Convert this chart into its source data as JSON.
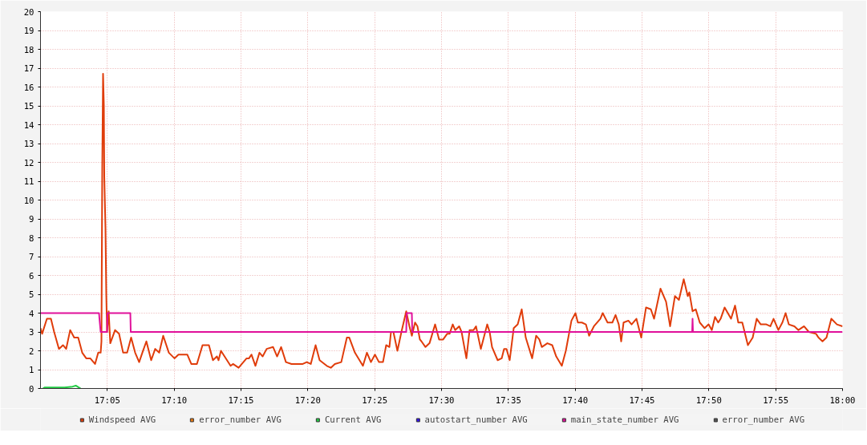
{
  "chart_data": {
    "type": "line",
    "xlim": [
      17.0,
      18.0
    ],
    "xticks": [
      {
        "value": 17.08333,
        "label": "17:05"
      },
      {
        "value": 17.16667,
        "label": "17:10"
      },
      {
        "value": 17.25,
        "label": "17:15"
      },
      {
        "value": 17.33333,
        "label": "17:20"
      },
      {
        "value": 17.41667,
        "label": "17:25"
      },
      {
        "value": 17.5,
        "label": "17:30"
      },
      {
        "value": 17.58333,
        "label": "17:35"
      },
      {
        "value": 17.66667,
        "label": "17:40"
      },
      {
        "value": 17.75,
        "label": "17:45"
      },
      {
        "value": 17.83333,
        "label": "17:50"
      },
      {
        "value": 17.91667,
        "label": "17:55"
      },
      {
        "value": 18.0,
        "label": "18:00"
      }
    ],
    "ylim": [
      0,
      20
    ],
    "yticks": [
      0,
      1,
      2,
      3,
      4,
      5,
      6,
      7,
      8,
      9,
      10,
      11,
      12,
      13,
      14,
      15,
      16,
      17,
      18,
      19,
      20
    ],
    "grid": true,
    "legend": "bottom",
    "series": [
      {
        "name": "Windspeed AVG",
        "color": "#e03c0a",
        "x": [
          17.0,
          17.002,
          17.008,
          17.013,
          17.017,
          17.023,
          17.028,
          17.032,
          17.037,
          17.042,
          17.047,
          17.052,
          17.057,
          17.062,
          17.068,
          17.072,
          17.075,
          17.076,
          17.077,
          17.078,
          17.079,
          17.0795,
          17.081,
          17.082,
          17.083,
          17.085,
          17.087,
          17.093,
          17.098,
          17.103,
          17.108,
          17.113,
          17.118,
          17.123,
          17.127,
          17.132,
          17.138,
          17.143,
          17.148,
          17.153,
          17.16,
          17.167,
          17.172,
          17.183,
          17.188,
          17.195,
          17.202,
          17.21,
          17.215,
          17.22,
          17.222,
          17.225,
          17.237,
          17.24,
          17.247,
          17.257,
          17.26,
          17.263,
          17.268,
          17.273,
          17.277,
          17.282,
          17.29,
          17.295,
          17.3,
          17.306,
          17.313,
          17.327,
          17.332,
          17.337,
          17.343,
          17.348,
          17.357,
          17.362,
          17.367,
          17.375,
          17.382,
          17.385,
          17.392,
          17.402,
          17.407,
          17.412,
          17.417,
          17.422,
          17.427,
          17.431,
          17.435,
          17.437,
          17.44,
          17.445,
          17.45,
          17.456,
          17.46,
          17.463,
          17.467,
          17.47,
          17.473,
          17.475,
          17.48,
          17.485,
          17.492,
          17.497,
          17.502,
          17.507,
          17.51,
          17.514,
          17.517,
          17.522,
          17.525,
          17.531,
          17.535,
          17.54,
          17.543,
          17.549,
          17.557,
          17.56,
          17.563,
          17.57,
          17.575,
          17.578,
          17.581,
          17.585,
          17.59,
          17.595,
          17.6,
          17.605,
          17.613,
          17.618,
          17.622,
          17.625,
          17.632,
          17.638,
          17.643,
          17.65,
          17.655,
          17.662,
          17.667,
          17.67,
          17.675,
          17.68,
          17.684,
          17.69,
          17.698,
          17.701,
          17.707,
          17.713,
          17.717,
          17.721,
          17.724,
          17.727,
          17.733,
          17.737,
          17.743,
          17.749,
          17.755,
          17.761,
          17.765,
          17.773,
          17.78,
          17.785,
          17.791,
          17.796,
          17.802,
          17.807,
          17.809,
          17.813,
          17.817,
          17.822,
          17.828,
          17.833,
          17.837,
          17.841,
          17.845,
          17.848,
          17.853,
          17.857,
          17.861,
          17.866,
          17.87,
          17.875,
          17.882,
          17.888,
          17.893,
          17.898,
          17.905,
          17.91,
          17.914,
          17.92,
          17.925,
          17.929,
          17.933,
          17.94,
          17.945,
          17.952,
          17.958,
          17.967,
          17.97,
          17.975,
          17.98,
          17.986,
          17.993,
          18.0
        ],
        "values": [
          3.2,
          2.9,
          3.7,
          3.7,
          3.0,
          2.1,
          2.3,
          2.1,
          3.1,
          2.7,
          2.7,
          1.9,
          1.6,
          1.6,
          1.3,
          1.9,
          1.9,
          2.5,
          11.8,
          16.7,
          15.0,
          11.3,
          8.5,
          5.0,
          3.0,
          4.1,
          2.4,
          3.1,
          2.9,
          1.9,
          1.9,
          2.7,
          1.9,
          1.4,
          1.9,
          2.5,
          1.5,
          2.1,
          1.9,
          2.8,
          1.9,
          1.6,
          1.8,
          1.8,
          1.3,
          1.3,
          2.3,
          2.3,
          1.5,
          1.7,
          1.5,
          2.0,
          1.2,
          1.3,
          1.1,
          1.6,
          1.6,
          1.8,
          1.2,
          1.9,
          1.7,
          2.1,
          2.2,
          1.7,
          2.2,
          1.4,
          1.3,
          1.3,
          1.4,
          1.3,
          2.3,
          1.5,
          1.2,
          1.1,
          1.3,
          1.4,
          2.7,
          2.7,
          1.9,
          1.2,
          1.9,
          1.4,
          1.8,
          1.4,
          1.4,
          2.3,
          2.2,
          3.0,
          3.0,
          2.0,
          3.0,
          4.1,
          3.3,
          2.8,
          3.5,
          3.3,
          2.6,
          2.5,
          2.2,
          2.4,
          3.4,
          2.6,
          2.6,
          2.9,
          2.9,
          3.4,
          3.1,
          3.3,
          3.0,
          1.6,
          3.1,
          3.1,
          3.3,
          2.1,
          3.4,
          3.0,
          2.2,
          1.5,
          1.6,
          2.1,
          2.1,
          1.5,
          3.2,
          3.4,
          4.2,
          2.7,
          1.6,
          2.8,
          2.6,
          2.2,
          2.4,
          2.3,
          1.7,
          1.2,
          2.0,
          3.6,
          4.0,
          3.5,
          3.5,
          3.4,
          2.8,
          3.3,
          3.7,
          4.0,
          3.5,
          3.5,
          3.9,
          3.4,
          2.5,
          3.5,
          3.6,
          3.4,
          3.7,
          2.7,
          4.3,
          4.2,
          3.7,
          5.3,
          4.6,
          3.3,
          4.9,
          4.7,
          5.8,
          4.9,
          5.1,
          4.1,
          4.2,
          3.5,
          3.2,
          3.4,
          3.1,
          3.8,
          3.5,
          3.7,
          4.3,
          4.0,
          3.7,
          4.4,
          3.5,
          3.5,
          2.3,
          2.7,
          3.7,
          3.4,
          3.4,
          3.3,
          3.7,
          3.1,
          3.5,
          4.0,
          3.4,
          3.3,
          3.1,
          3.3,
          3.0,
          2.9,
          2.7,
          2.5,
          2.7,
          3.7,
          3.4,
          3.3
        ]
      },
      {
        "name": "error_number AVG",
        "color": "#ea7a12"
      },
      {
        "name": "Current AVG",
        "color": "#22cc44",
        "x": [
          17.003,
          17.005,
          17.03,
          17.04,
          17.044,
          17.048,
          17.05
        ],
        "values": [
          0,
          0.05,
          0.05,
          0.1,
          0.15,
          0.05,
          0
        ]
      },
      {
        "name": "autostart_number AVG",
        "color": "#3311ee"
      },
      {
        "name": "main_state_number AVG",
        "color": "#e0109a",
        "x": [
          17.0,
          17.073,
          17.0735,
          17.075,
          17.083,
          17.0835,
          17.112,
          17.1125,
          17.456,
          17.4565,
          17.463,
          17.4635,
          17.8125,
          17.813,
          17.8135,
          18.0
        ],
        "values": [
          4,
          4,
          3.7,
          3,
          3,
          4,
          4,
          3,
          3,
          4,
          4,
          3,
          3,
          3.7,
          3,
          3
        ]
      },
      {
        "name": "error_number AVG",
        "color": "#555555"
      }
    ]
  }
}
